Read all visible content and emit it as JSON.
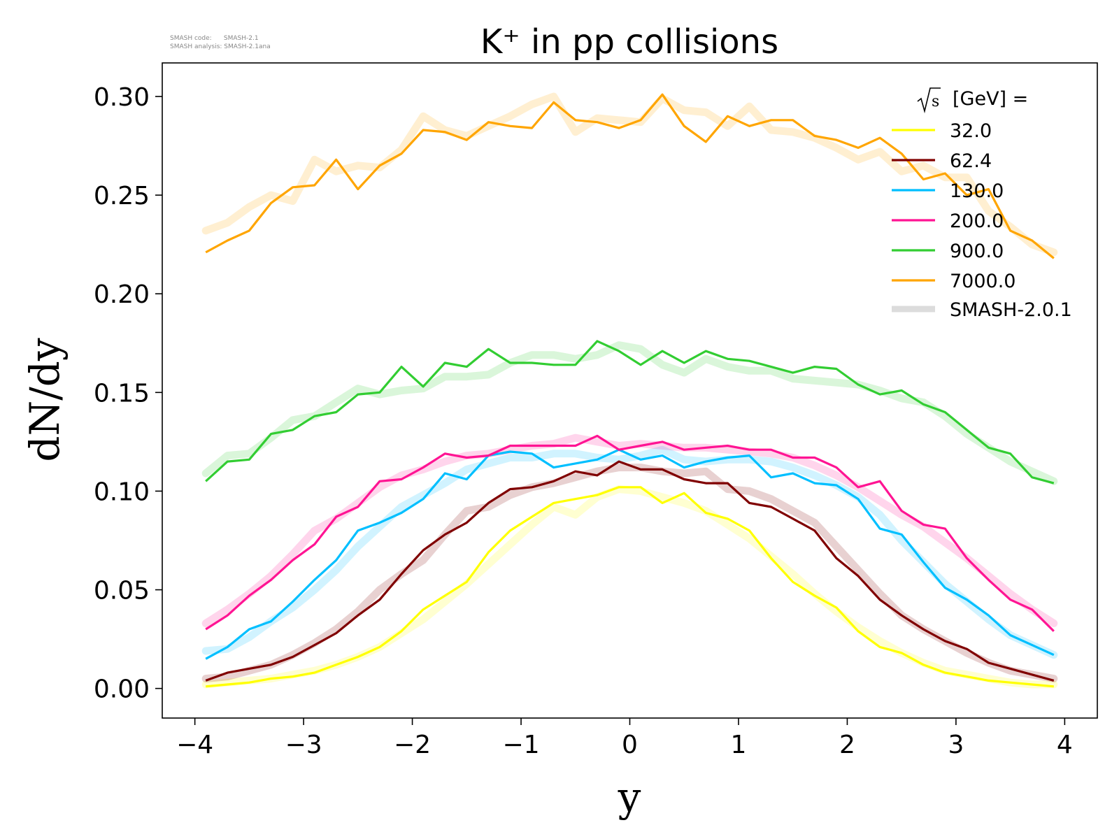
{
  "meta": {
    "code_line": "SMASH code:      SMASH-2.1",
    "analysis_line": "SMASH analysis: SMASH-2.1ana"
  },
  "chart_data": {
    "type": "line",
    "title": "K⁺ in pp collisions",
    "xlabel": "y",
    "ylabel": "dN/dy",
    "xlim": [
      -4.3,
      4.3
    ],
    "ylim": [
      -0.015,
      0.317
    ],
    "xticks": [
      -4,
      -3,
      -2,
      -1,
      0,
      1,
      2,
      3,
      4
    ],
    "xtick_labels": [
      "−4",
      "−3",
      "−2",
      "−1",
      "0",
      "1",
      "2",
      "3",
      "4"
    ],
    "yticks": [
      0.0,
      0.05,
      0.1,
      0.15,
      0.2,
      0.25,
      0.3
    ],
    "ytick_labels": [
      "0.00",
      "0.05",
      "0.10",
      "0.15",
      "0.20",
      "0.25",
      "0.30"
    ],
    "grid": false,
    "legend": {
      "placement": "top-right",
      "title_sqrt": "s",
      "title_rest": "[GeV] =",
      "reference_label": "SMASH-2.0.1",
      "reference_color": "#dcdcdc"
    },
    "x": [
      -3.9,
      -3.7,
      -3.5,
      -3.3,
      -3.1,
      -2.9,
      -2.7,
      -2.5,
      -2.3,
      -2.1,
      -1.9,
      -1.7,
      -1.5,
      -1.3,
      -1.1,
      -0.9,
      -0.7,
      -0.5,
      -0.3,
      -0.1,
      0.1,
      0.3,
      0.5,
      0.7,
      0.9,
      1.1,
      1.3,
      1.5,
      1.7,
      1.9,
      2.1,
      2.3,
      2.5,
      2.7,
      2.9,
      3.1,
      3.3,
      3.5,
      3.7,
      3.9
    ],
    "series": [
      {
        "name": "32.0",
        "color": "#ffff00",
        "values": [
          0.001,
          0.002,
          0.003,
          0.005,
          0.006,
          0.008,
          0.012,
          0.016,
          0.021,
          0.029,
          0.04,
          0.047,
          0.054,
          0.069,
          0.08,
          0.087,
          0.094,
          0.096,
          0.098,
          0.102,
          0.102,
          0.094,
          0.099,
          0.089,
          0.086,
          0.08,
          0.066,
          0.054,
          0.047,
          0.041,
          0.029,
          0.021,
          0.018,
          0.012,
          0.008,
          0.006,
          0.004,
          0.003,
          0.002,
          0.001
        ],
        "reference": [
          0.002,
          0.003,
          0.004,
          0.005,
          0.007,
          0.009,
          0.012,
          0.016,
          0.021,
          0.028,
          0.035,
          0.044,
          0.053,
          0.063,
          0.073,
          0.083,
          0.092,
          0.088,
          0.097,
          0.101,
          0.1,
          0.097,
          0.094,
          0.09,
          0.083,
          0.076,
          0.067,
          0.058,
          0.048,
          0.039,
          0.031,
          0.024,
          0.018,
          0.013,
          0.009,
          0.007,
          0.005,
          0.003,
          0.002,
          0.002
        ]
      },
      {
        "name": "62.4",
        "color": "#800000",
        "values": [
          0.004,
          0.008,
          0.01,
          0.012,
          0.016,
          0.022,
          0.028,
          0.037,
          0.045,
          0.058,
          0.07,
          0.078,
          0.084,
          0.094,
          0.101,
          0.102,
          0.105,
          0.11,
          0.108,
          0.115,
          0.111,
          0.111,
          0.106,
          0.104,
          0.104,
          0.094,
          0.092,
          0.086,
          0.08,
          0.066,
          0.057,
          0.045,
          0.037,
          0.03,
          0.024,
          0.02,
          0.013,
          0.01,
          0.007,
          0.004
        ],
        "reference": [
          0.005,
          0.006,
          0.009,
          0.012,
          0.017,
          0.023,
          0.03,
          0.039,
          0.05,
          0.058,
          0.065,
          0.078,
          0.09,
          0.092,
          0.098,
          0.102,
          0.104,
          0.107,
          0.11,
          0.112,
          0.112,
          0.11,
          0.109,
          0.11,
          0.101,
          0.1,
          0.096,
          0.09,
          0.084,
          0.072,
          0.06,
          0.048,
          0.037,
          0.03,
          0.024,
          0.018,
          0.013,
          0.009,
          0.007,
          0.005
        ]
      },
      {
        "name": "130.0",
        "color": "#00bfff",
        "values": [
          0.015,
          0.021,
          0.03,
          0.034,
          0.044,
          0.055,
          0.065,
          0.08,
          0.084,
          0.089,
          0.096,
          0.109,
          0.106,
          0.118,
          0.12,
          0.119,
          0.112,
          0.114,
          0.116,
          0.121,
          0.116,
          0.118,
          0.112,
          0.115,
          0.117,
          0.118,
          0.107,
          0.109,
          0.104,
          0.103,
          0.096,
          0.081,
          0.078,
          0.064,
          0.051,
          0.045,
          0.037,
          0.027,
          0.022,
          0.017
        ],
        "reference": [
          0.019,
          0.02,
          0.026,
          0.034,
          0.041,
          0.05,
          0.06,
          0.072,
          0.082,
          0.092,
          0.098,
          0.104,
          0.111,
          0.114,
          0.117,
          0.117,
          0.119,
          0.119,
          0.117,
          0.116,
          0.118,
          0.121,
          0.116,
          0.115,
          0.116,
          0.116,
          0.115,
          0.112,
          0.108,
          0.103,
          0.097,
          0.088,
          0.075,
          0.064,
          0.053,
          0.044,
          0.035,
          0.027,
          0.022,
          0.017
        ]
      },
      {
        "name": "200.0",
        "color": "#ff1493",
        "values": [
          0.03,
          0.037,
          0.047,
          0.055,
          0.065,
          0.073,
          0.087,
          0.092,
          0.105,
          0.106,
          0.112,
          0.119,
          0.117,
          0.118,
          0.123,
          0.123,
          0.123,
          0.123,
          0.128,
          0.121,
          0.123,
          0.125,
          0.121,
          0.122,
          0.123,
          0.121,
          0.121,
          0.117,
          0.117,
          0.112,
          0.102,
          0.105,
          0.09,
          0.083,
          0.081,
          0.066,
          0.055,
          0.045,
          0.04,
          0.029
        ],
        "reference": [
          0.033,
          0.04,
          0.048,
          0.057,
          0.068,
          0.08,
          0.086,
          0.094,
          0.102,
          0.108,
          0.111,
          0.115,
          0.118,
          0.119,
          0.121,
          0.123,
          0.124,
          0.127,
          0.125,
          0.123,
          0.124,
          0.123,
          0.122,
          0.122,
          0.121,
          0.12,
          0.119,
          0.117,
          0.113,
          0.108,
          0.102,
          0.095,
          0.088,
          0.082,
          0.074,
          0.066,
          0.057,
          0.048,
          0.04,
          0.033
        ]
      },
      {
        "name": "900.0",
        "color": "#32cd32",
        "values": [
          0.105,
          0.115,
          0.116,
          0.129,
          0.131,
          0.138,
          0.14,
          0.149,
          0.15,
          0.163,
          0.153,
          0.165,
          0.163,
          0.172,
          0.165,
          0.165,
          0.164,
          0.164,
          0.176,
          0.171,
          0.164,
          0.171,
          0.165,
          0.171,
          0.167,
          0.166,
          0.163,
          0.16,
          0.163,
          0.162,
          0.154,
          0.149,
          0.151,
          0.144,
          0.14,
          0.131,
          0.122,
          0.119,
          0.107,
          0.104
        ],
        "reference": [
          0.109,
          0.118,
          0.119,
          0.127,
          0.136,
          0.138,
          0.145,
          0.152,
          0.149,
          0.151,
          0.152,
          0.158,
          0.158,
          0.159,
          0.165,
          0.169,
          0.169,
          0.167,
          0.169,
          0.174,
          0.172,
          0.164,
          0.16,
          0.167,
          0.163,
          0.161,
          0.161,
          0.157,
          0.156,
          0.155,
          0.154,
          0.151,
          0.147,
          0.145,
          0.138,
          0.129,
          0.122,
          0.115,
          0.11,
          0.105
        ]
      },
      {
        "name": "7000.0",
        "color": "#ffa500",
        "values": [
          0.221,
          0.227,
          0.232,
          0.246,
          0.254,
          0.255,
          0.268,
          0.253,
          0.265,
          0.271,
          0.283,
          0.282,
          0.278,
          0.287,
          0.285,
          0.284,
          0.297,
          0.288,
          0.287,
          0.284,
          0.288,
          0.301,
          0.285,
          0.277,
          0.29,
          0.285,
          0.288,
          0.288,
          0.28,
          0.278,
          0.274,
          0.279,
          0.271,
          0.258,
          0.261,
          0.25,
          0.253,
          0.232,
          0.227,
          0.218
        ],
        "reference": [
          0.232,
          0.236,
          0.244,
          0.25,
          0.247,
          0.268,
          0.262,
          0.265,
          0.264,
          0.273,
          0.29,
          0.283,
          0.28,
          0.285,
          0.29,
          0.296,
          0.3,
          0.282,
          0.289,
          0.288,
          0.287,
          0.299,
          0.293,
          0.292,
          0.285,
          0.295,
          0.283,
          0.282,
          0.279,
          0.274,
          0.268,
          0.272,
          0.262,
          0.265,
          0.259,
          0.259,
          0.242,
          0.234,
          0.225,
          0.221
        ]
      }
    ]
  }
}
